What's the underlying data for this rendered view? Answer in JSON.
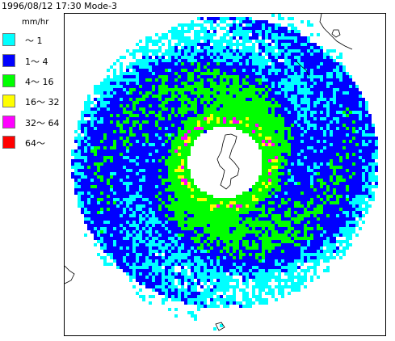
{
  "header": {
    "text": "1996/08/12 17:30 Mode-3"
  },
  "legend": {
    "unit": "mm/hr",
    "items": [
      {
        "label": "～ 1",
        "color": "#00ffff"
      },
      {
        "label": "1～ 4",
        "color": "#0000ff"
      },
      {
        "label": "4～ 16",
        "color": "#00ff00"
      },
      {
        "label": "16～ 32",
        "color": "#ffff00"
      },
      {
        "label": "32～ 64",
        "color": "#ff00ff"
      },
      {
        "label": "64～",
        "color": "#ff0000"
      }
    ]
  },
  "map": {
    "background": "#ffffff",
    "coastline_color": "#000000"
  }
}
